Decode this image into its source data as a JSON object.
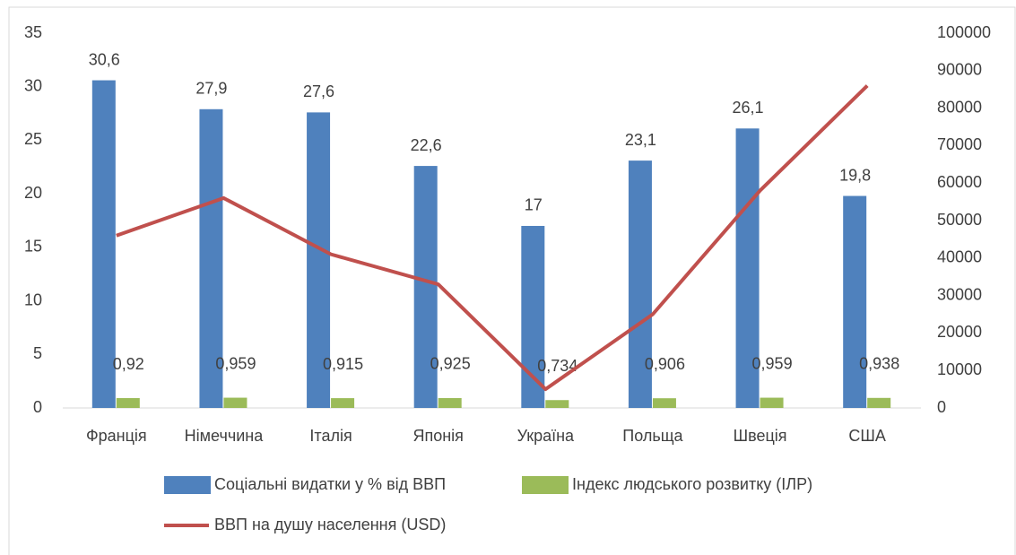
{
  "chart_data": {
    "type": "bar",
    "categories": [
      "Франція",
      "Німеччина",
      "Італія",
      "Японія",
      "Україна",
      "Польща",
      "Швеція",
      "США"
    ],
    "series": [
      {
        "name": "Соціальні видатки у % від ВВП",
        "color": "#4f81bd",
        "values": [
          30.6,
          27.9,
          27.6,
          22.6,
          17,
          23.1,
          26.1,
          19.8
        ],
        "value_labels": [
          "30,6",
          "27,9",
          "27,6",
          "22,6",
          "17",
          "23,1",
          "26,1",
          "19,8"
        ]
      },
      {
        "name": "Індекс людського розвитку (ІЛР)",
        "color": "#9bbb59",
        "values": [
          0.92,
          0.959,
          0.915,
          0.925,
          0.734,
          0.906,
          0.959,
          0.938
        ],
        "value_labels": [
          "0,92",
          "0,959",
          "0,915",
          "0,925",
          "0,734",
          "0,906",
          "0,959",
          "0,938"
        ]
      },
      {
        "name": "ВВП на душу населення (USD)",
        "color": "#c0504d",
        "type": "line",
        "axis": "y2",
        "values": [
          46000,
          56000,
          41000,
          33000,
          5000,
          25000,
          58000,
          86000
        ]
      }
    ],
    "ylim": [
      0,
      35
    ],
    "yticks": [
      0,
      5,
      10,
      15,
      20,
      25,
      30,
      35
    ],
    "y2lim": [
      0,
      100000
    ],
    "y2ticks": [
      0,
      10000,
      20000,
      30000,
      40000,
      50000,
      60000,
      70000,
      80000,
      90000,
      100000
    ],
    "grid": false,
    "legend": "bottom"
  }
}
